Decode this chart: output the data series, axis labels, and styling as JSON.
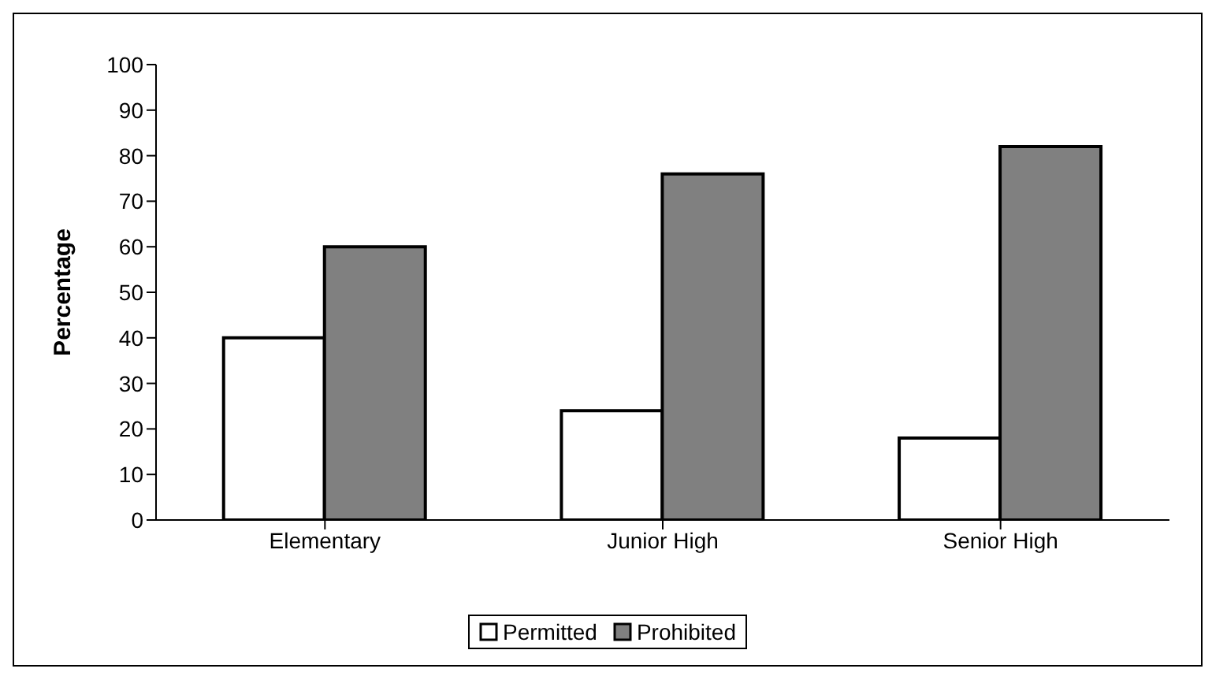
{
  "chart_data": {
    "type": "bar",
    "ylabel": "Percentage",
    "categories": [
      "Elementary",
      "Junior High",
      "Senior High"
    ],
    "series": [
      {
        "name": "Permitted",
        "color": "#ffffff",
        "values": [
          40,
          24,
          18
        ]
      },
      {
        "name": "Prohibited",
        "color": "#808080",
        "values": [
          60,
          76,
          82
        ]
      }
    ],
    "ylim": [
      0,
      100
    ],
    "yticks": [
      0,
      10,
      20,
      30,
      40,
      50,
      60,
      70,
      80,
      90,
      100
    ],
    "grid": false,
    "legend": "bottom"
  }
}
